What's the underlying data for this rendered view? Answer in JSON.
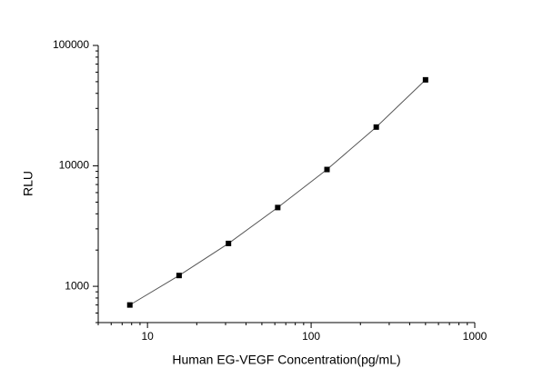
{
  "chart_data": {
    "type": "scatter",
    "x_label": "Human EG-VEGF Concentration(pg/mL)",
    "y_label": "RLU",
    "x_scale": "log",
    "y_scale": "log",
    "xlim": [
      5,
      1000
    ],
    "ylim": [
      500,
      100000
    ],
    "xticks": [
      10,
      100,
      1000
    ],
    "yticks": [
      1000,
      10000,
      100000
    ],
    "line_color": "#555555",
    "marker_color": "#000000",
    "x": [
      7.8,
      15.6,
      31.25,
      62.5,
      125,
      250,
      500
    ],
    "values": [
      700,
      1230,
      2270,
      4510,
      9330,
      21000,
      51800
    ]
  }
}
